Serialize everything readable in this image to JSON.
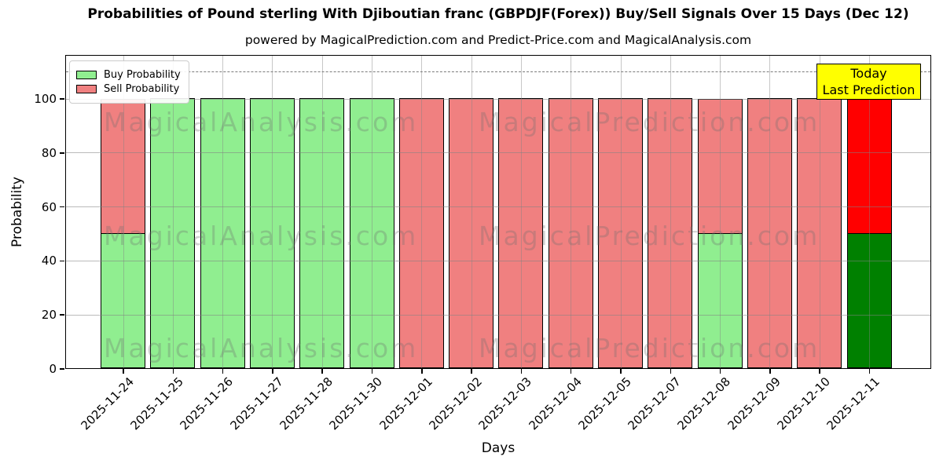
{
  "header": {
    "title": "Probabilities of Pound sterling With Djiboutian franc (GBPDJF(Forex)) Buy/Sell Signals Over 15 Days (Dec 12)",
    "subtitle": "powered by MagicalPrediction.com and Predict-Price.com and MagicalAnalysis.com"
  },
  "axes": {
    "xlabel": "Days",
    "ylabel": "Probability",
    "yticks": [
      0,
      20,
      40,
      60,
      80,
      100
    ]
  },
  "legend": {
    "items": [
      {
        "label": "Buy Probability",
        "color": "#90EE90"
      },
      {
        "label": "Sell Probability",
        "color": "#F08080"
      }
    ]
  },
  "annotation": {
    "line1": "Today",
    "line2": "Last Prediction",
    "bg": "#FFFF00"
  },
  "watermarks": {
    "left": "MagicalAnalysis.com",
    "right": "MagicalPrediction.com"
  },
  "chart_data": {
    "type": "bar",
    "stacked": true,
    "title": "Probabilities of Pound sterling With Djiboutian franc (GBPDJF(Forex)) Buy/Sell Signals Over 15 Days (Dec 12)",
    "xlabel": "Days",
    "ylabel": "Probability",
    "ylim": [
      0,
      116
    ],
    "dashed_threshold_y": 110,
    "grid": true,
    "legend_position": "upper left",
    "categories": [
      "2025-11-24",
      "2025-11-25",
      "2025-11-26",
      "2025-11-27",
      "2025-11-28",
      "2025-11-30",
      "2025-12-01",
      "2025-12-02",
      "2025-12-03",
      "2025-12-04",
      "2025-12-05",
      "2025-12-07",
      "2025-12-08",
      "2025-12-09",
      "2025-12-10",
      "2025-12-11"
    ],
    "series": [
      {
        "name": "Buy Probability",
        "color": "#90EE90",
        "today_color": "#008000",
        "values": [
          50,
          100,
          100,
          100,
          100,
          100,
          0,
          0,
          0,
          0,
          0,
          0,
          50,
          0,
          0,
          50
        ]
      },
      {
        "name": "Sell Probability",
        "color": "#F08080",
        "today_color": "#FF0000",
        "values": [
          50,
          0,
          0,
          0,
          0,
          0,
          100,
          100,
          100,
          100,
          100,
          100,
          50,
          100,
          100,
          50
        ]
      }
    ],
    "today_index": 15
  }
}
